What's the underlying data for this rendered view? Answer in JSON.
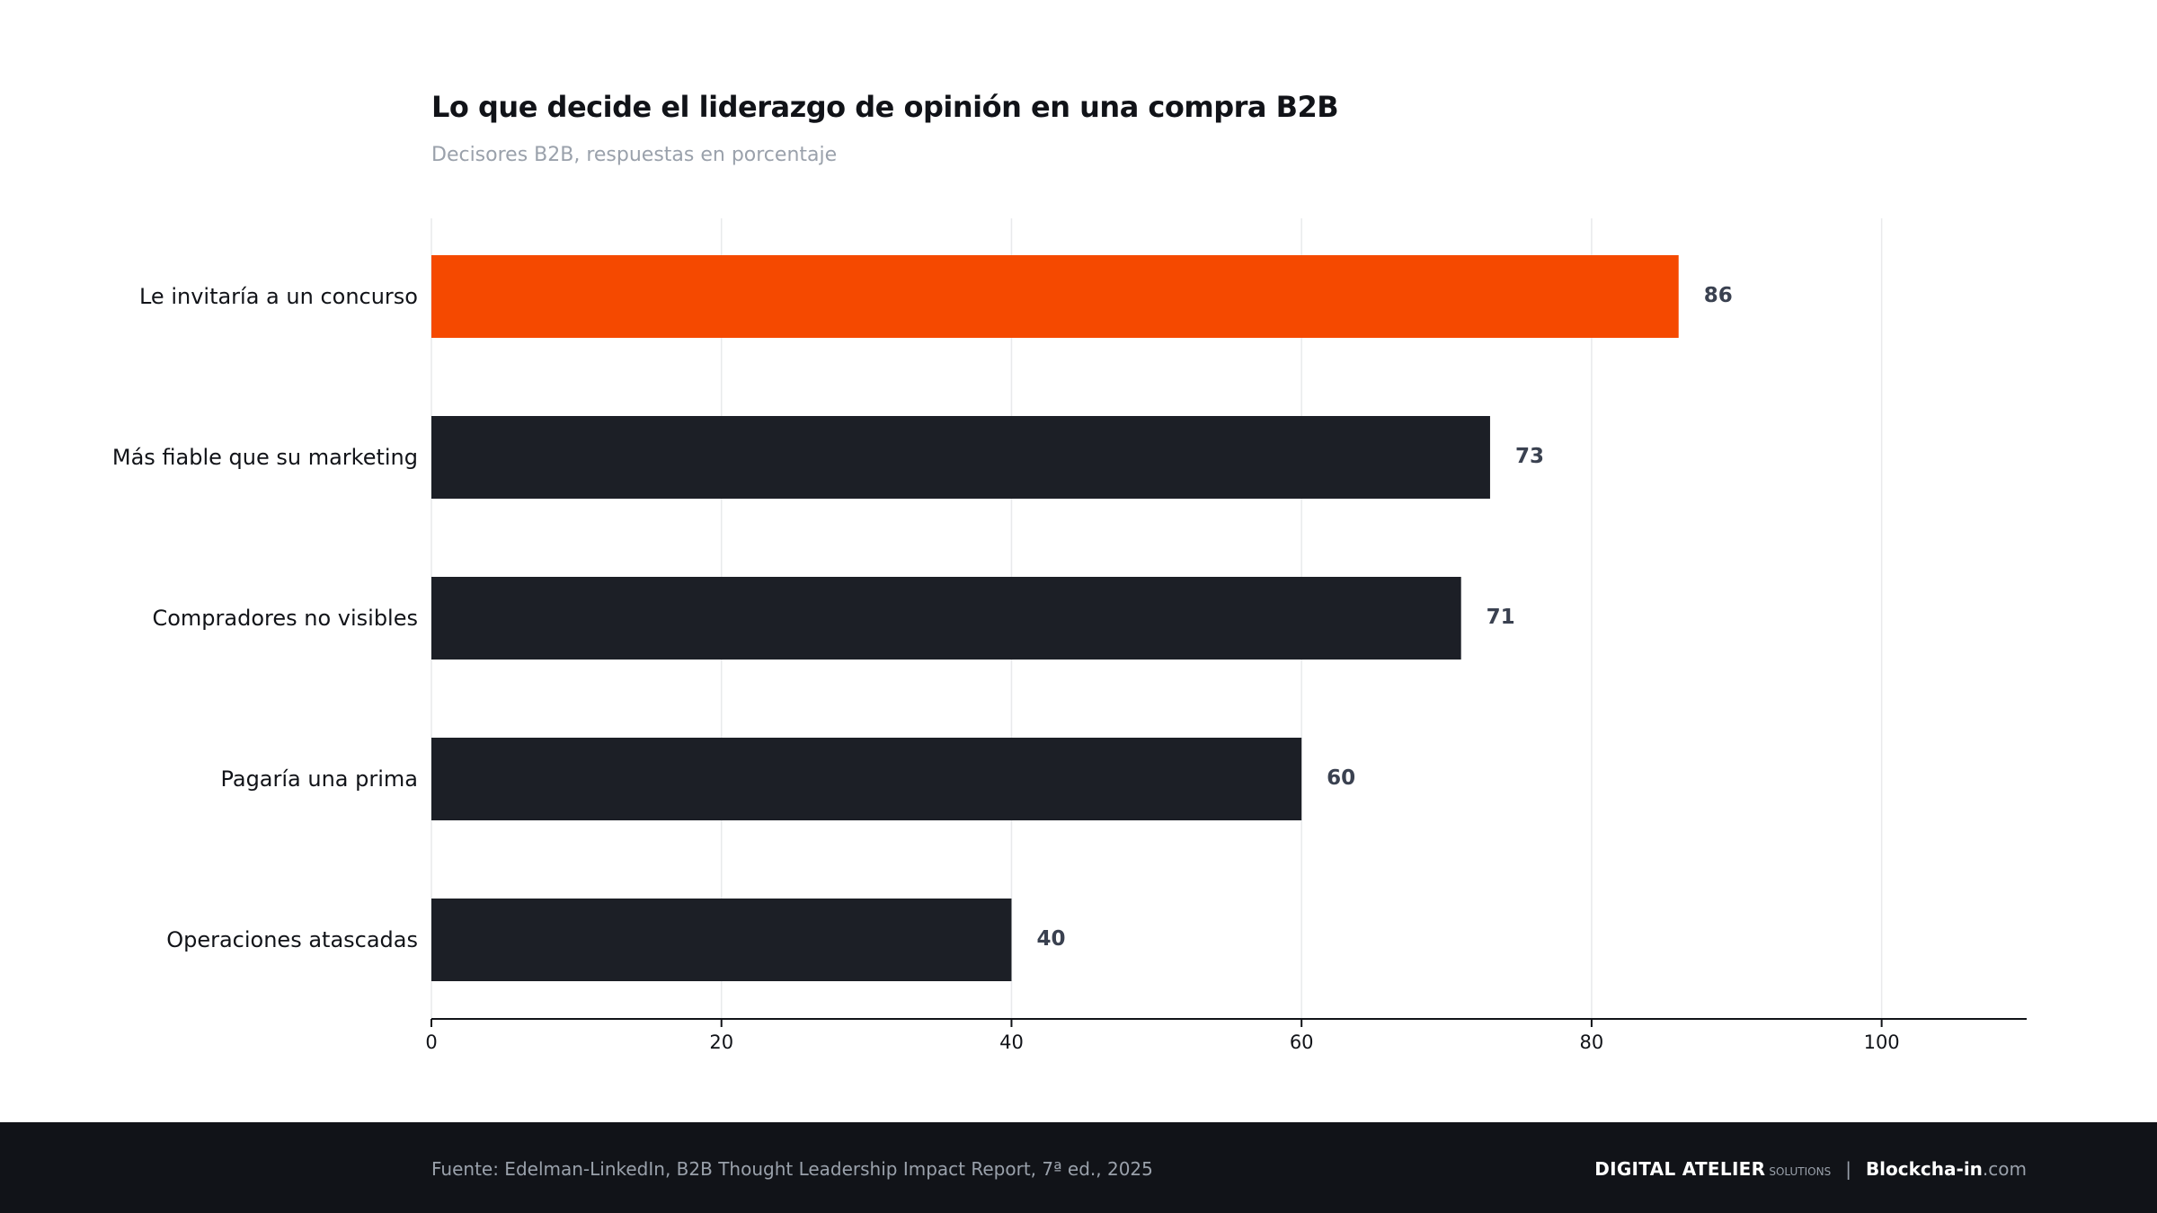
{
  "header": {
    "title": "Lo que decide el liderazgo de opinión en una compra B2B",
    "subtitle": "Decisores B2B, respuestas en porcentaje"
  },
  "colors": {
    "highlight": "#f54900",
    "bar": "#1c1f26",
    "value_label": "#3a4150",
    "grid": "#e9eaec",
    "axis": "#111318",
    "footer_bg": "#111318"
  },
  "chart_data": {
    "type": "bar",
    "orientation": "horizontal",
    "categories": [
      "Le invitaría a un concurso",
      "Más fiable que su marketing",
      "Compradores no visibles",
      "Pagaría una prima",
      "Operaciones atascadas"
    ],
    "values": [
      86,
      73,
      71,
      60,
      40
    ],
    "highlight_index": 0,
    "xlim": [
      0,
      110
    ],
    "xticks": [
      0,
      20,
      40,
      60,
      80,
      100
    ],
    "grid": true
  },
  "footer": {
    "source": "Fuente: Edelman-LinkedIn, B2B Thought Leadership Impact Report, 7ª ed., 2025",
    "brand_main": "DIGITAL ATELIER",
    "brand_small": "SOLUTIONS",
    "separator": "|",
    "site_name": "Blockcha-in",
    "site_tld": ".com"
  }
}
